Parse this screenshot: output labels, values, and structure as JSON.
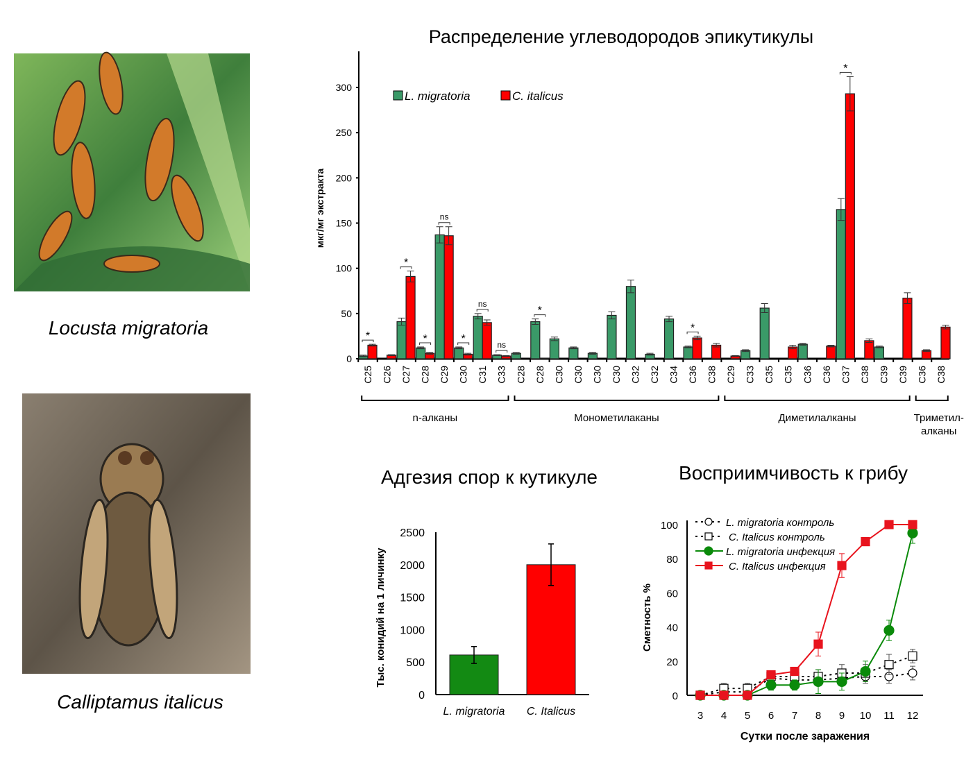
{
  "photos": [
    {
      "caption": "Locusta migratoria"
    },
    {
      "caption": "Calliptamus italicus"
    }
  ],
  "colors": {
    "green": "#3a9a68",
    "red": "#ff0000",
    "line_green": "#0a8a0a",
    "line_red": "#e8141e"
  },
  "chart_data": [
    {
      "type": "bar",
      "title": "Распределение углеводородов эпикутикулы",
      "ylabel": "мкг/мг экстракта",
      "xlabel": "",
      "ylim": [
        0,
        330
      ],
      "yticks": [
        0,
        50,
        100,
        150,
        200,
        250,
        300
      ],
      "legend": "top-left",
      "categories": [
        "C25",
        "C26",
        "C27",
        "C28",
        "C29",
        "C30",
        "C31",
        "C33",
        "C28",
        "C28",
        "C30",
        "C30",
        "C30",
        "C30",
        "C32",
        "C32",
        "C34",
        "C36",
        "C38",
        "C29",
        "C33",
        "C35",
        "C35",
        "C36",
        "C36",
        "C37",
        "C38",
        "C39",
        "C39",
        "C36",
        "C38"
      ],
      "series": [
        {
          "name": "L. migratoria",
          "values": [
            3,
            0,
            41,
            12,
            137,
            12,
            47,
            4,
            6,
            41,
            22,
            12,
            6,
            48,
            80,
            5,
            44,
            13,
            0,
            0,
            9,
            56,
            0,
            16,
            0,
            165,
            0,
            13,
            0,
            0,
            0
          ],
          "errors": [
            1,
            0,
            4,
            1,
            9,
            1,
            3,
            0.5,
            1,
            3,
            2,
            1,
            1,
            4,
            7,
            1,
            3,
            1,
            0,
            0,
            1,
            5,
            0,
            1,
            0,
            12,
            0,
            1,
            0,
            0,
            0
          ]
        },
        {
          "name": "C. italicus",
          "values": [
            15,
            4,
            91,
            6,
            136,
            5,
            40,
            3,
            0,
            0.5,
            0,
            0,
            0,
            0,
            0,
            0,
            0,
            23,
            15,
            3,
            0,
            0,
            13,
            0,
            14,
            293,
            20,
            0,
            67,
            9,
            35
          ],
          "errors": [
            1,
            0.5,
            6,
            1,
            10,
            1,
            3,
            0.5,
            0,
            0,
            0,
            0,
            0,
            0,
            0,
            0,
            0,
            2,
            2,
            0.5,
            0,
            0,
            2,
            0,
            1,
            19,
            2,
            0,
            6,
            1,
            2
          ]
        }
      ],
      "significance": [
        {
          "index": 0,
          "label": "*"
        },
        {
          "index": 2,
          "label": "*"
        },
        {
          "index": 3,
          "label": "*"
        },
        {
          "index": 4,
          "label": "ns"
        },
        {
          "index": 5,
          "label": "*"
        },
        {
          "index": 6,
          "label": "ns"
        },
        {
          "index": 7,
          "label": "ns"
        },
        {
          "index": 9,
          "label": "*"
        },
        {
          "index": 17,
          "label": "*"
        },
        {
          "index": 25,
          "label": "*"
        }
      ],
      "groups": [
        {
          "label": "n-алканы",
          "from": 0,
          "to": 7
        },
        {
          "label": "Монометилаканы",
          "from": 8,
          "to": 18
        },
        {
          "label": "Диметилалканы",
          "from": 19,
          "to": 28
        },
        {
          "label": "Триметил-",
          "label2": "алканы",
          "from": 29,
          "to": 30
        }
      ]
    },
    {
      "type": "bar",
      "title": "Адгезия спор к кутикуле",
      "ylabel": "Тыс. конидий на 1 личинку",
      "xlabel": "",
      "ylim": [
        0,
        2500
      ],
      "yticks": [
        0,
        500,
        1000,
        1500,
        2000,
        2500
      ],
      "categories": [
        "L. migratoria",
        "C. Italicus"
      ],
      "values": [
        610,
        2000
      ],
      "errors": [
        130,
        320
      ]
    },
    {
      "type": "line",
      "title": "Восприимчивость к грибу",
      "ylabel": "Сметность %",
      "xlabel": "Сутки после заражения",
      "ylim": [
        0,
        100
      ],
      "yticks": [
        0,
        20,
        40,
        60,
        80,
        100
      ],
      "x": [
        3,
        4,
        5,
        6,
        7,
        8,
        9,
        10,
        11,
        12
      ],
      "legend": "top-left",
      "series": [
        {
          "name": "L. migratoria контроль",
          "values": [
            0,
            2,
            2,
            10,
            9,
            9,
            10,
            11,
            11,
            13
          ],
          "errors": [
            0,
            1,
            1,
            2,
            2,
            3,
            3,
            4,
            4,
            4
          ],
          "style": "dotted-circle-open"
        },
        {
          "name": "C. Italicus контроль",
          "values": [
            0,
            4,
            4,
            11,
            11,
            11,
            13,
            13,
            18,
            23
          ],
          "errors": [
            0,
            3,
            3,
            2,
            2,
            4,
            5,
            5,
            6,
            4
          ],
          "style": "dotted-square-open"
        },
        {
          "name": "L. migratoria инфекция",
          "values": [
            0,
            0,
            0,
            6,
            6,
            8,
            8,
            14,
            38,
            95
          ],
          "errors": [
            0,
            0,
            0,
            3,
            3,
            7,
            5,
            6,
            6,
            6
          ],
          "style": "solid-circle-green"
        },
        {
          "name": "C. Italicus инфекция",
          "values": [
            0,
            0,
            0,
            12,
            14,
            30,
            76,
            90,
            100,
            100
          ],
          "errors": [
            0,
            0,
            0,
            2,
            2,
            7,
            7,
            0,
            0,
            0
          ],
          "style": "solid-square-red"
        }
      ]
    }
  ]
}
